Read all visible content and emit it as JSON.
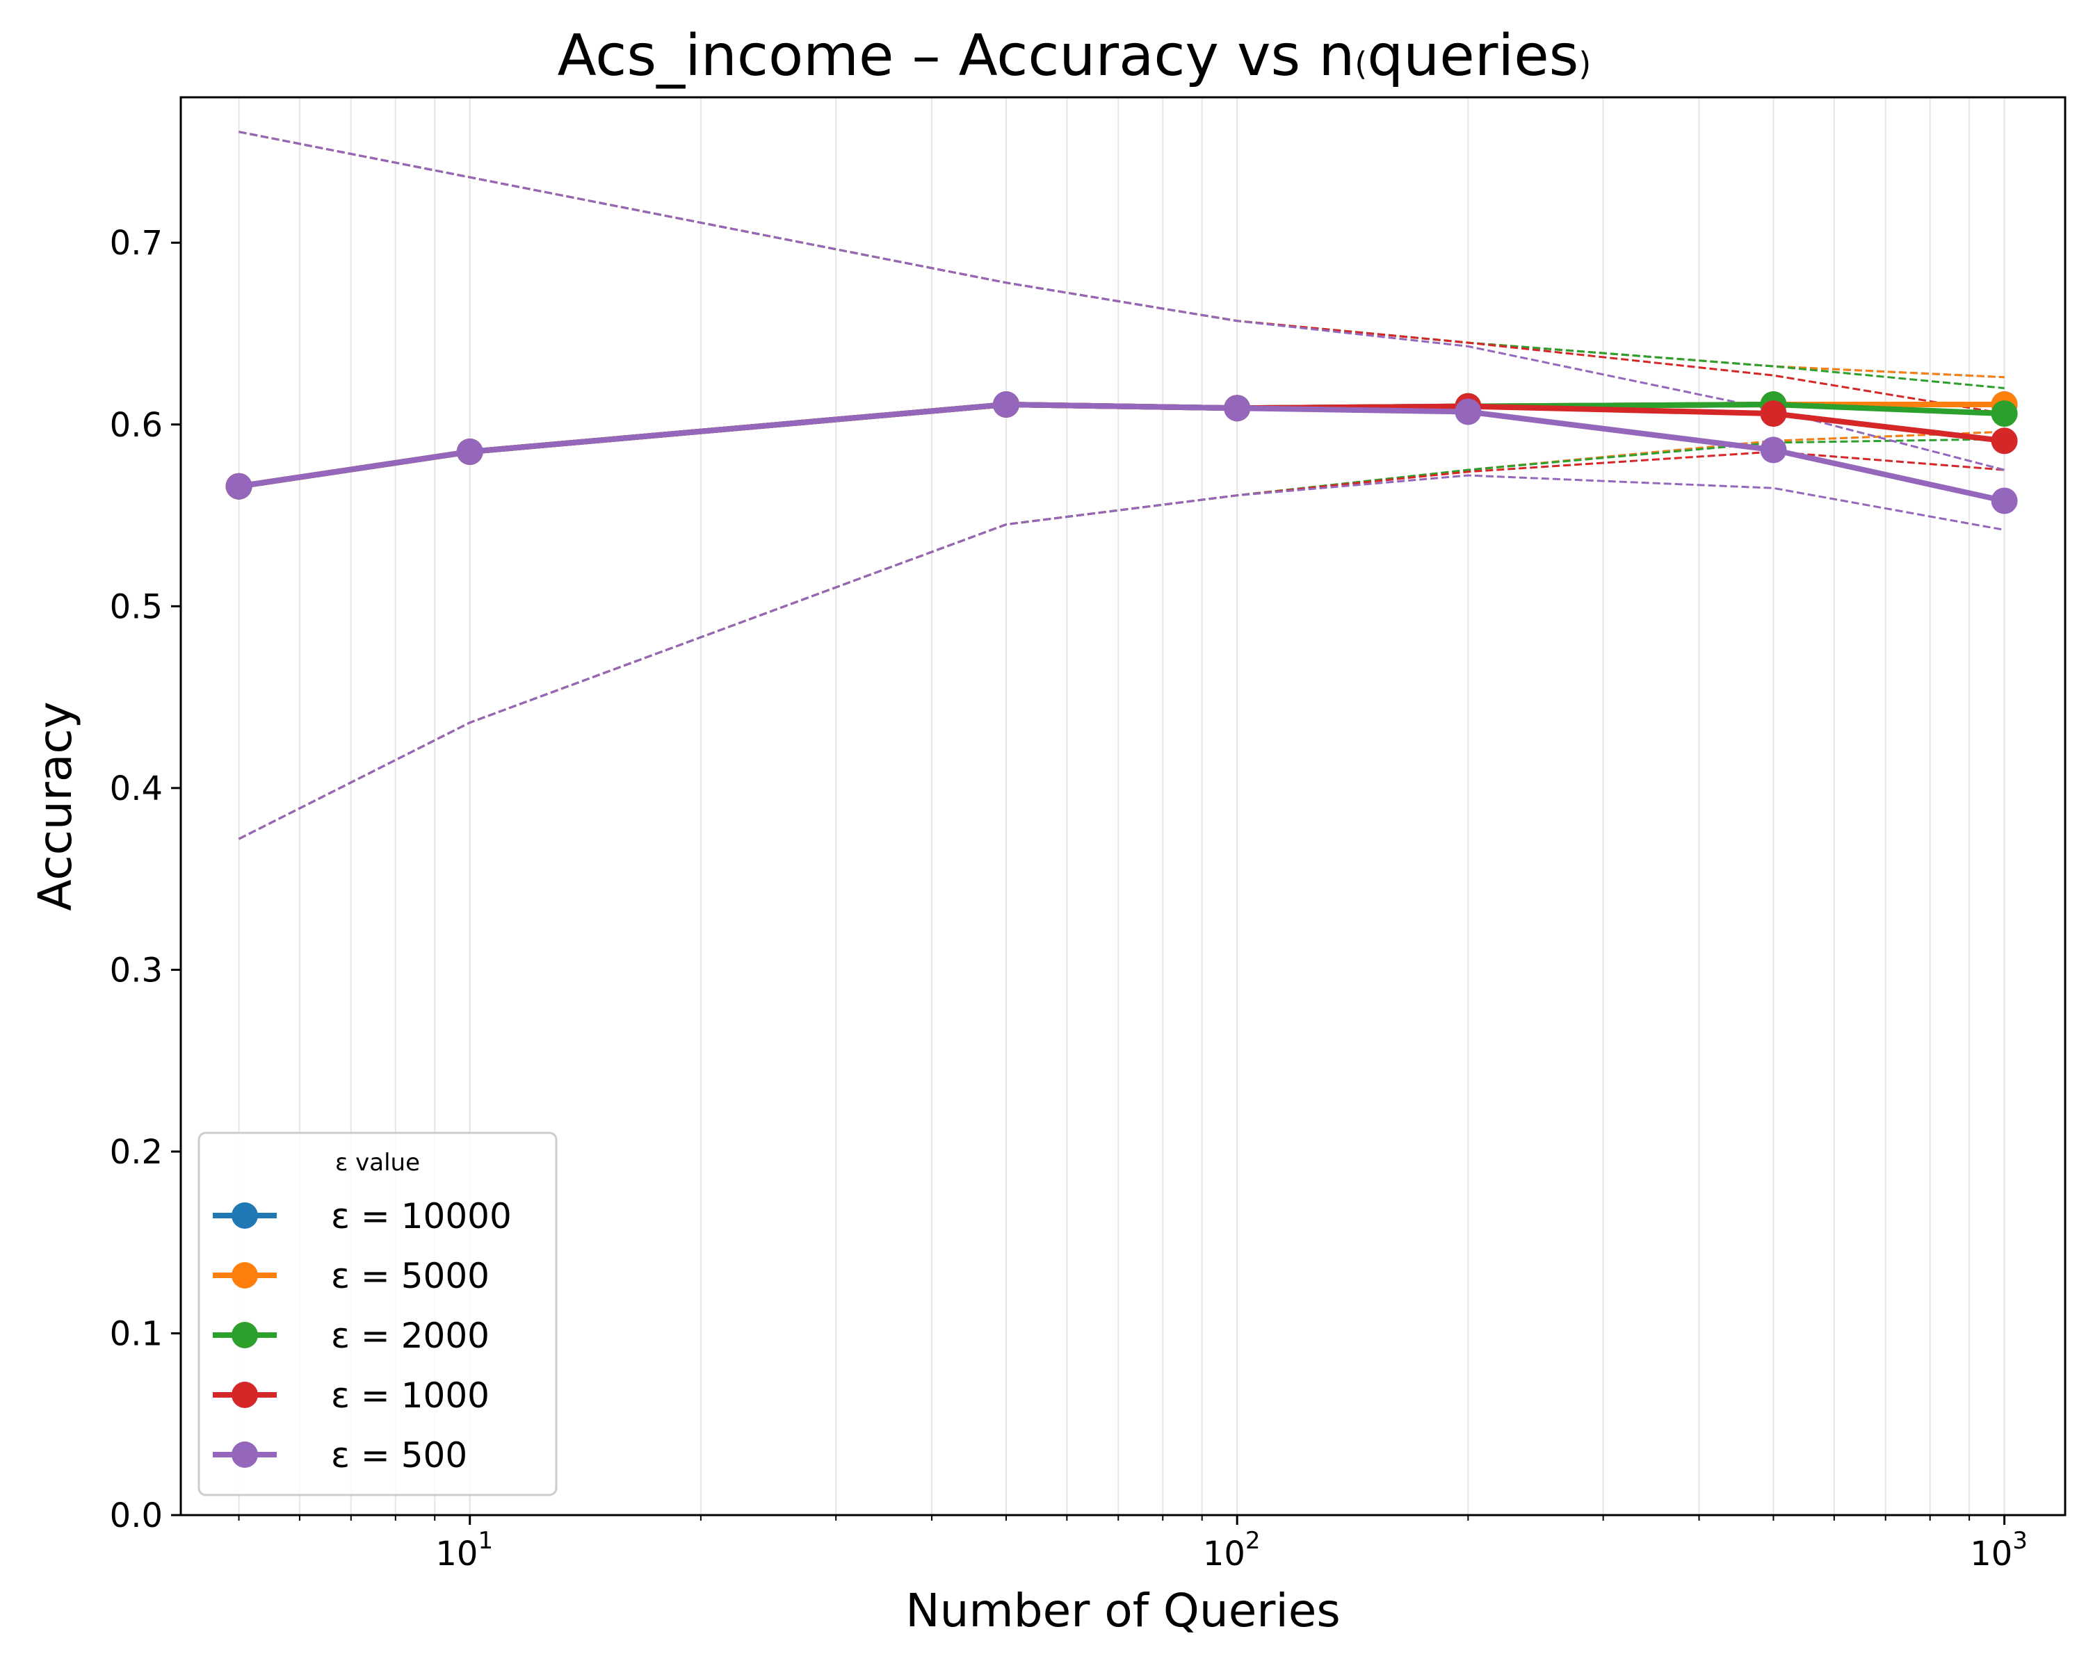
{
  "chart_data": {
    "type": "line",
    "title": "Acs_income – Accuracy vs n(queries)",
    "title_parts": {
      "main": "Acs_income – Accuracy vs n",
      "open": "(",
      "inner": "queries",
      "close": ")"
    },
    "xlabel": "Number of Queries",
    "ylabel": "Accuracy",
    "xscale": "log",
    "xlim": [
      4.2,
      1200
    ],
    "ylim": [
      0.0,
      0.78
    ],
    "x_ticks": [
      10,
      100,
      1000
    ],
    "x_tick_labels": [
      {
        "base": "10",
        "exp": "1"
      },
      {
        "base": "10",
        "exp": "2"
      },
      {
        "base": "10",
        "exp": "3"
      }
    ],
    "y_ticks": [
      0.0,
      0.1,
      0.2,
      0.3,
      0.4,
      0.5,
      0.6,
      0.7
    ],
    "y_tick_labels": [
      "0.0",
      "0.1",
      "0.2",
      "0.3",
      "0.4",
      "0.5",
      "0.6",
      "0.7"
    ],
    "grid": "x-major-and-minor",
    "legend": {
      "title": "ε value",
      "position": "lower-left"
    },
    "x": [
      5,
      10,
      50,
      100,
      200,
      500,
      1000
    ],
    "series": [
      {
        "name": "ε = 10000",
        "color": "#1f77b4",
        "values": [
          0.566,
          0.585,
          0.611,
          0.609,
          0.61,
          0.611,
          0.611
        ],
        "lower": [
          0.372,
          0.436,
          0.545,
          0.561,
          0.575,
          0.591,
          0.596
        ],
        "upper": [
          0.761,
          0.736,
          0.678,
          0.657,
          0.645,
          0.632,
          0.626
        ]
      },
      {
        "name": "ε = 5000",
        "color": "#ff7f0e",
        "values": [
          0.566,
          0.585,
          0.611,
          0.609,
          0.61,
          0.611,
          0.611
        ],
        "lower": [
          0.372,
          0.436,
          0.545,
          0.561,
          0.575,
          0.591,
          0.596
        ],
        "upper": [
          0.761,
          0.736,
          0.678,
          0.657,
          0.645,
          0.632,
          0.626
        ]
      },
      {
        "name": "ε = 2000",
        "color": "#2ca02c",
        "values": [
          0.566,
          0.585,
          0.611,
          0.609,
          0.61,
          0.611,
          0.606
        ],
        "lower": [
          0.372,
          0.436,
          0.545,
          0.561,
          0.575,
          0.59,
          0.592
        ],
        "upper": [
          0.761,
          0.736,
          0.678,
          0.657,
          0.645,
          0.632,
          0.62
        ]
      },
      {
        "name": "ε = 1000",
        "color": "#d62728",
        "values": [
          0.566,
          0.585,
          0.611,
          0.609,
          0.61,
          0.606,
          0.591
        ],
        "lower": [
          0.372,
          0.436,
          0.545,
          0.561,
          0.574,
          0.585,
          0.575
        ],
        "upper": [
          0.761,
          0.736,
          0.678,
          0.657,
          0.645,
          0.627,
          0.606
        ]
      },
      {
        "name": "ε = 500",
        "color": "#9467bd",
        "values": [
          0.566,
          0.585,
          0.611,
          0.609,
          0.607,
          0.586,
          0.558
        ],
        "lower": [
          0.372,
          0.436,
          0.545,
          0.561,
          0.572,
          0.565,
          0.542
        ],
        "upper": [
          0.761,
          0.736,
          0.678,
          0.657,
          0.643,
          0.608,
          0.575
        ]
      }
    ]
  }
}
